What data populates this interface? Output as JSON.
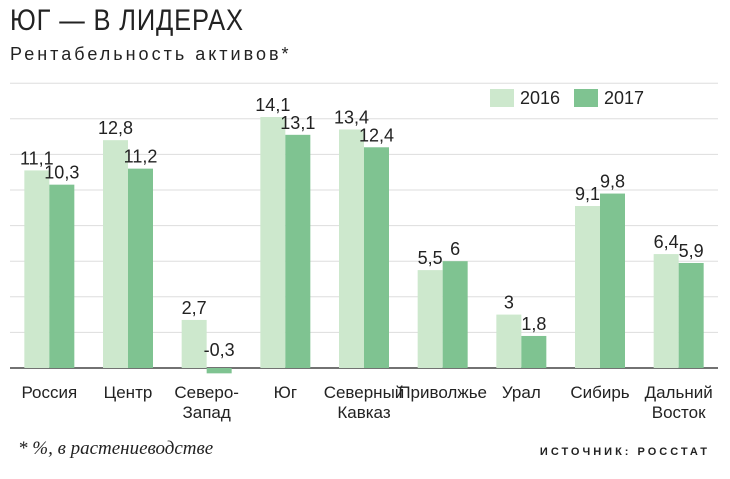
{
  "header": {
    "title": "ЮГ — В ЛИДЕРАХ",
    "subtitle": "Рентабельность активов*"
  },
  "footer": {
    "footnote": "* %, в растениеводстве",
    "source": "ИСТОЧНИК: РОССТАТ"
  },
  "colors": {
    "series_2016": "#cde8cd",
    "series_2017": "#7fc391",
    "grid": "#dddddd",
    "axis": "#444444"
  },
  "chart_data": {
    "type": "bar",
    "title": "ЮГ — В ЛИДЕРАХ",
    "subtitle": "Рентабельность активов*",
    "categories": [
      [
        "Россия"
      ],
      [
        "Центр"
      ],
      [
        "Северо-",
        "Запад"
      ],
      [
        "Юг"
      ],
      [
        "Северный",
        "Кавказ"
      ],
      [
        "Приволжье"
      ],
      [
        "Урал"
      ],
      [
        "Сибирь"
      ],
      [
        "Дальний",
        "Восток"
      ]
    ],
    "series": [
      {
        "name": "2016",
        "values": [
          11.1,
          12.8,
          2.7,
          14.1,
          13.4,
          5.5,
          3,
          9.1,
          6.4
        ],
        "labels": [
          "11,1",
          "12,8",
          "2,7",
          "14,1",
          "13,4",
          "5,5",
          "3",
          "9,1",
          "6,4"
        ]
      },
      {
        "name": "2017",
        "values": [
          10.3,
          11.2,
          -0.3,
          13.1,
          12.4,
          6,
          1.8,
          9.8,
          5.9
        ],
        "labels": [
          "10,3",
          "11,2",
          "-0,3",
          "13,1",
          "12,4",
          "6",
          "1,8",
          "9,8",
          "5,9"
        ]
      }
    ],
    "ylim": [
      0,
      16
    ],
    "grid": true,
    "legend": "top-right"
  }
}
